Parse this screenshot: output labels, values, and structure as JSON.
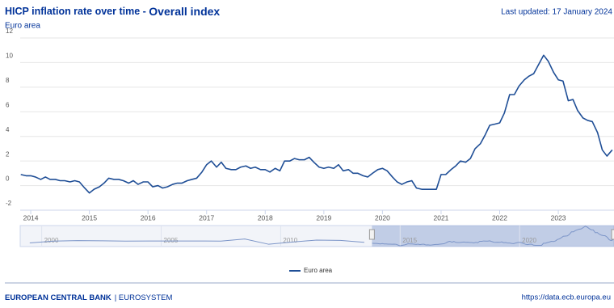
{
  "chart_data": {
    "type": "line",
    "title": "HICP inflation rate over time - ",
    "title_emphasis": "Overall index",
    "subtitle": "Euro area",
    "updated": "Last updated: 17 January 2024",
    "footer_left": "EUROPEAN CENTRAL BANK",
    "footer_sep": "| EUROSYSTEM",
    "footer_right": "https://data.ecb.europa.eu",
    "xlim": [
      2013.82,
      2023.95
    ],
    "xticks": [
      2014,
      2015,
      2016,
      2017,
      2018,
      2019,
      2020,
      2021,
      2022,
      2023
    ],
    "ylim": [
      -2,
      12
    ],
    "yticks": [
      -2,
      0,
      2,
      4,
      6,
      8,
      10,
      12
    ],
    "grid": true,
    "x": [
      2013.83,
      2013.92,
      2014.0,
      2014.08,
      2014.17,
      2014.25,
      2014.33,
      2014.42,
      2014.5,
      2014.58,
      2014.67,
      2014.75,
      2014.83,
      2014.92,
      2015.0,
      2015.08,
      2015.17,
      2015.25,
      2015.33,
      2015.42,
      2015.5,
      2015.58,
      2015.67,
      2015.75,
      2015.83,
      2015.92,
      2016.0,
      2016.08,
      2016.17,
      2016.25,
      2016.33,
      2016.42,
      2016.5,
      2016.58,
      2016.67,
      2016.75,
      2016.83,
      2016.92,
      2017.0,
      2017.08,
      2017.17,
      2017.25,
      2017.33,
      2017.42,
      2017.5,
      2017.58,
      2017.67,
      2017.75,
      2017.83,
      2017.92,
      2018.0,
      2018.08,
      2018.17,
      2018.25,
      2018.33,
      2018.42,
      2018.5,
      2018.58,
      2018.67,
      2018.75,
      2018.83,
      2018.92,
      2019.0,
      2019.08,
      2019.17,
      2019.25,
      2019.33,
      2019.42,
      2019.5,
      2019.58,
      2019.67,
      2019.75,
      2019.83,
      2019.92,
      2020.0,
      2020.08,
      2020.17,
      2020.25,
      2020.33,
      2020.42,
      2020.5,
      2020.58,
      2020.67,
      2020.75,
      2020.83,
      2020.92,
      2021.0,
      2021.08,
      2021.17,
      2021.25,
      2021.33,
      2021.42,
      2021.5,
      2021.58,
      2021.67,
      2021.75,
      2021.83,
      2021.92,
      2022.0,
      2022.08,
      2022.17,
      2022.25,
      2022.33,
      2022.42,
      2022.5,
      2022.58,
      2022.67,
      2022.75,
      2022.83,
      2022.92,
      2023.0,
      2023.08,
      2023.17,
      2023.25,
      2023.33,
      2023.42,
      2023.5,
      2023.58,
      2023.67,
      2023.75,
      2023.83,
      2023.92
    ],
    "series": [
      {
        "name": "Euro area",
        "color": "#1f4e96",
        "values": [
          0.9,
          0.8,
          0.8,
          0.7,
          0.5,
          0.7,
          0.5,
          0.5,
          0.4,
          0.4,
          0.3,
          0.4,
          0.3,
          -0.2,
          -0.6,
          -0.3,
          -0.1,
          0.2,
          0.6,
          0.5,
          0.5,
          0.4,
          0.2,
          0.4,
          0.1,
          0.3,
          0.3,
          -0.1,
          0.0,
          -0.2,
          -0.1,
          0.1,
          0.2,
          0.2,
          0.4,
          0.5,
          0.6,
          1.1,
          1.7,
          2.0,
          1.5,
          1.9,
          1.4,
          1.3,
          1.3,
          1.5,
          1.6,
          1.4,
          1.5,
          1.3,
          1.3,
          1.1,
          1.4,
          1.2,
          2.0,
          2.0,
          2.2,
          2.1,
          2.1,
          2.3,
          1.9,
          1.5,
          1.4,
          1.5,
          1.4,
          1.7,
          1.2,
          1.3,
          1.0,
          1.0,
          0.8,
          0.7,
          1.0,
          1.3,
          1.4,
          1.2,
          0.7,
          0.3,
          0.1,
          0.3,
          0.4,
          -0.2,
          -0.3,
          -0.3,
          -0.3,
          -0.3,
          0.9,
          0.9,
          1.3,
          1.6,
          2.0,
          1.9,
          2.2,
          3.0,
          3.4,
          4.1,
          4.9,
          5.0,
          5.1,
          5.9,
          7.4,
          7.4,
          8.1,
          8.6,
          8.9,
          9.1,
          9.9,
          10.6,
          10.1,
          9.2,
          8.6,
          8.5,
          6.9,
          7.0,
          6.1,
          5.5,
          5.3,
          5.2,
          4.3,
          2.9,
          2.4,
          2.9
        ]
      }
    ],
    "navigator": {
      "xlim": [
        1999.1,
        2023.95
      ],
      "xticks": [
        2000,
        2005,
        2010,
        2015,
        2020
      ],
      "ylim": [
        -1,
        11
      ],
      "range": [
        2013.82,
        2023.95
      ],
      "x": [
        1999.5,
        2000.5,
        2001.5,
        2002.5,
        2003.5,
        2004.5,
        2005.5,
        2006.5,
        2007.5,
        2008.5,
        2009.5,
        2010.5,
        2011.5,
        2012.5,
        2013.5
      ],
      "values": [
        1.1,
        2.1,
        2.4,
        2.3,
        2.1,
        2.2,
        2.2,
        2.2,
        2.1,
        3.3,
        0.3,
        1.6,
        2.7,
        2.5,
        1.4
      ]
    }
  }
}
